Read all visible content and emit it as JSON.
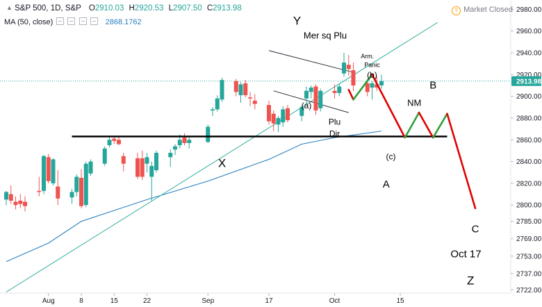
{
  "header": {
    "symbol": "S&P 500, 1D, S&P",
    "open_label": "O",
    "open": "2910.03",
    "high_label": "H",
    "high": "2920.53",
    "low_label": "L",
    "low": "2907.50",
    "close_label": "C",
    "close": "2913.98",
    "ma_label": "MA (50, close)",
    "ma_value": "2868.1762",
    "market_status": "Market Closed",
    "status_icon": "question-circle-icon"
  },
  "colors": {
    "up": "#26a69a",
    "down": "#ef5350",
    "ma": "#2a7fbd",
    "trend": "#3db4a4",
    "wave_up": "#2e9e3b",
    "wave_down": "#e00000",
    "price_tag": "#26a69a"
  },
  "chart_data": {
    "type": "candlestick",
    "x_tick_labels": [
      {
        "label": "Aug",
        "date": "2018-08-01"
      },
      {
        "label": "8",
        "date": "2018-08-08"
      },
      {
        "label": "15",
        "date": "2018-08-15"
      },
      {
        "label": "22",
        "date": "2018-08-22"
      },
      {
        "label": "Sep",
        "date": "2018-09-04"
      },
      {
        "label": "17",
        "date": "2018-09-17"
      },
      {
        "label": "Oct",
        "date": "2018-10-01"
      },
      {
        "label": "15",
        "date": "2018-10-15"
      }
    ],
    "y_ticks": [
      2722.0,
      2737.0,
      2753.0,
      2769.0,
      2785.0,
      2800.0,
      2820.0,
      2840.0,
      2860.0,
      2880.0,
      2900.0,
      2920.0,
      2940.0,
      2960.0,
      2980.0
    ],
    "ylim": [
      2719,
      2986
    ],
    "last_price": "2913.98",
    "candles": [
      {
        "date": "2018-07-23",
        "o": 2805,
        "h": 2813,
        "l": 2800,
        "c": 2812
      },
      {
        "date": "2018-07-24",
        "o": 2810,
        "h": 2818,
        "l": 2801,
        "c": 2804
      },
      {
        "date": "2018-07-25",
        "o": 2803,
        "h": 2808,
        "l": 2796,
        "c": 2800
      },
      {
        "date": "2018-07-26",
        "o": 2804,
        "h": 2810,
        "l": 2797,
        "c": 2801
      },
      {
        "date": "2018-07-27",
        "o": 2803,
        "h": 2808,
        "l": 2794,
        "c": 2799
      },
      {
        "date": "2018-07-30",
        "o": 2813,
        "h": 2826,
        "l": 2808,
        "c": 2812
      },
      {
        "date": "2018-07-31",
        "o": 2813,
        "h": 2846,
        "l": 2810,
        "c": 2845
      },
      {
        "date": "2018-08-01",
        "o": 2844,
        "h": 2847,
        "l": 2820,
        "c": 2822
      },
      {
        "date": "2018-08-02",
        "o": 2820,
        "h": 2843,
        "l": 2818,
        "c": 2842
      },
      {
        "date": "2018-08-03",
        "o": 2817,
        "h": 2832,
        "l": 2800,
        "c": 2806
      },
      {
        "date": "2018-08-06",
        "o": 2807,
        "h": 2815,
        "l": 2801,
        "c": 2812
      },
      {
        "date": "2018-08-07",
        "o": 2812,
        "h": 2828,
        "l": 2808,
        "c": 2826
      },
      {
        "date": "2018-08-08",
        "o": 2825,
        "h": 2833,
        "l": 2797,
        "c": 2799
      },
      {
        "date": "2018-08-09",
        "o": 2800,
        "h": 2840,
        "l": 2798,
        "c": 2838
      },
      {
        "date": "2018-08-10",
        "o": 2829,
        "h": 2842,
        "l": 2827,
        "c": 2840
      },
      {
        "date": "2018-08-13",
        "o": 2838,
        "h": 2854,
        "l": 2836,
        "c": 2852
      },
      {
        "date": "2018-08-14",
        "o": 2855,
        "h": 2863,
        "l": 2853,
        "c": 2860
      },
      {
        "date": "2018-08-15",
        "o": 2861,
        "h": 2863,
        "l": 2856,
        "c": 2859
      },
      {
        "date": "2018-08-16",
        "o": 2860,
        "h": 2863,
        "l": 2855,
        "c": 2856
      },
      {
        "date": "2018-08-17",
        "o": 2845,
        "h": 2848,
        "l": 2831,
        "c": 2838
      },
      {
        "date": "2018-08-20",
        "o": 2843,
        "h": 2848,
        "l": 2824,
        "c": 2826
      },
      {
        "date": "2018-08-21",
        "o": 2843,
        "h": 2850,
        "l": 2823,
        "c": 2826
      },
      {
        "date": "2018-08-22",
        "o": 2838,
        "h": 2848,
        "l": 2830,
        "c": 2844
      },
      {
        "date": "2018-08-23",
        "o": 2826,
        "h": 2840,
        "l": 2804,
        "c": 2836
      },
      {
        "date": "2018-08-24",
        "o": 2832,
        "h": 2850,
        "l": 2830,
        "c": 2848
      },
      {
        "date": "2018-08-27",
        "o": 2844,
        "h": 2851,
        "l": 2835,
        "c": 2848
      },
      {
        "date": "2018-08-28",
        "o": 2851,
        "h": 2856,
        "l": 2846,
        "c": 2854
      },
      {
        "date": "2018-08-29",
        "o": 2855,
        "h": 2865,
        "l": 2852,
        "c": 2860
      },
      {
        "date": "2018-08-30",
        "o": 2862,
        "h": 2866,
        "l": 2855,
        "c": 2857
      },
      {
        "date": "2018-08-31",
        "o": 2857,
        "h": 2863,
        "l": 2852,
        "c": 2860
      },
      {
        "date": "2018-09-04",
        "o": 2858,
        "h": 2874,
        "l": 2857,
        "c": 2872
      },
      {
        "date": "2018-09-05",
        "o": 2887,
        "h": 2890,
        "l": 2882,
        "c": 2888
      },
      {
        "date": "2018-09-06",
        "o": 2888,
        "h": 2901,
        "l": 2886,
        "c": 2898
      },
      {
        "date": "2018-09-07",
        "o": 2897,
        "h": 2917,
        "l": 2895,
        "c": 2915
      },
      {
        "date": "2018-09-10",
        "o": 2914,
        "h": 2916,
        "l": 2900,
        "c": 2904
      },
      {
        "date": "2018-09-11",
        "o": 2901,
        "h": 2913,
        "l": 2894,
        "c": 2911
      },
      {
        "date": "2018-09-12",
        "o": 2912,
        "h": 2915,
        "l": 2899,
        "c": 2901
      },
      {
        "date": "2018-09-13",
        "o": 2899,
        "h": 2904,
        "l": 2891,
        "c": 2898
      },
      {
        "date": "2018-09-14",
        "o": 2896,
        "h": 2902,
        "l": 2888,
        "c": 2893
      },
      {
        "date": "2018-09-17",
        "o": 2892,
        "h": 2896,
        "l": 2874,
        "c": 2877
      },
      {
        "date": "2018-09-18",
        "o": 2884,
        "h": 2887,
        "l": 2868,
        "c": 2875
      },
      {
        "date": "2018-09-19",
        "o": 2874,
        "h": 2882,
        "l": 2867,
        "c": 2880
      },
      {
        "date": "2018-09-20",
        "o": 2876,
        "h": 2891,
        "l": 2872,
        "c": 2888
      },
      {
        "date": "2018-09-21",
        "o": 2889,
        "h": 2892,
        "l": 2876,
        "c": 2878
      },
      {
        "date": "2018-09-24",
        "o": 2882,
        "h": 2891,
        "l": 2877,
        "c": 2890
      },
      {
        "date": "2018-09-25",
        "o": 2898,
        "h": 2909,
        "l": 2893,
        "c": 2905
      },
      {
        "date": "2018-09-26",
        "o": 2904,
        "h": 2910,
        "l": 2898,
        "c": 2908
      },
      {
        "date": "2018-09-27",
        "o": 2909,
        "h": 2911,
        "l": 2883,
        "c": 2887
      },
      {
        "date": "2018-09-28",
        "o": 2889,
        "h": 2907,
        "l": 2886,
        "c": 2905
      },
      {
        "date": "2018-10-01",
        "o": 2905,
        "h": 2911,
        "l": 2898,
        "c": 2903
      },
      {
        "date": "2018-10-02",
        "o": 2903,
        "h": 2912,
        "l": 2900,
        "c": 2909
      },
      {
        "date": "2018-10-03",
        "o": 2921,
        "h": 2940,
        "l": 2918,
        "c": 2931
      },
      {
        "date": "2018-10-04",
        "o": 2929,
        "h": 2938,
        "l": 2919,
        "c": 2925
      },
      {
        "date": "2018-10-05",
        "o": 2924,
        "h": 2931,
        "l": 2905,
        "c": 2910
      },
      {
        "date": "2018-10-08",
        "o": 2912,
        "h": 2916,
        "l": 2900,
        "c": 2904
      },
      {
        "date": "2018-10-09",
        "o": 2908,
        "h": 2914,
        "l": 2897,
        "c": 2912
      },
      {
        "date": "2018-10-10",
        "o": 2911,
        "h": 2918,
        "l": 2905,
        "c": 2908
      },
      {
        "date": "2018-10-11",
        "o": 2910,
        "h": 2920,
        "l": 2907,
        "c": 2914
      }
    ],
    "ma50": [
      {
        "date": "2018-07-23",
        "v": 2748
      },
      {
        "date": "2018-08-01",
        "v": 2765
      },
      {
        "date": "2018-08-08",
        "v": 2785
      },
      {
        "date": "2018-08-15",
        "v": 2795
      },
      {
        "date": "2018-08-22",
        "v": 2805
      },
      {
        "date": "2018-09-04",
        "v": 2822
      },
      {
        "date": "2018-09-17",
        "v": 2842
      },
      {
        "date": "2018-09-24",
        "v": 2856
      },
      {
        "date": "2018-10-01",
        "v": 2862
      },
      {
        "date": "2018-10-11",
        "v": 2868
      }
    ],
    "annotations": {
      "support_line": {
        "from": "2018-08-06",
        "to": "2018-10-25",
        "price": 2863
      },
      "trend_channel": [
        {
          "from": "2018-07-23",
          "from_price": 2720,
          "to": "2018-10-23",
          "to_price": 2968
        }
      ],
      "wedge_top": {
        "from": "2018-09-17",
        "from_price": 2942,
        "to": "2018-10-05",
        "to_price": 2922
      },
      "wedge_bottom": {
        "from": "2018-09-18",
        "from_price": 2905,
        "to": "2018-10-04",
        "to_price": 2885
      },
      "wave_path": [
        {
          "date": "2018-10-04",
          "price": 2906,
          "dir": "down"
        },
        {
          "date": "2018-10-05",
          "price": 2897,
          "dir": "down"
        },
        {
          "date": "2018-10-09",
          "price": 2920,
          "dir": "up"
        },
        {
          "date": "2018-10-16",
          "price": 2862,
          "dir": "down"
        },
        {
          "date": "2018-10-19",
          "price": 2885,
          "dir": "up"
        },
        {
          "date": "2018-10-22",
          "price": 2862,
          "dir": "down"
        },
        {
          "date": "2018-10-25",
          "price": 2884,
          "dir": "up"
        },
        {
          "date": "2018-10-31",
          "price": 2797,
          "dir": "down"
        }
      ],
      "labels": [
        {
          "text": "Y",
          "date": "2018-09-23",
          "price": 2966,
          "size": 17
        },
        {
          "text": "Mer sq Plu",
          "date": "2018-09-29",
          "price": 2953,
          "size": 13
        },
        {
          "text": "Arm.",
          "date": "2018-10-08",
          "price": 2935,
          "size": 9
        },
        {
          "text": "Panic",
          "date": "2018-10-09",
          "price": 2927,
          "size": 9
        },
        {
          "text": "(b)",
          "date": "2018-10-09",
          "price": 2917,
          "size": 12
        },
        {
          "text": "B",
          "date": "2018-10-22",
          "price": 2907,
          "size": 15
        },
        {
          "text": "NM",
          "date": "2018-10-18",
          "price": 2891,
          "size": 13
        },
        {
          "text": "(a)",
          "date": "2018-09-25",
          "price": 2889,
          "size": 12
        },
        {
          "text": "Plu",
          "date": "2018-10-01",
          "price": 2874,
          "size": 12
        },
        {
          "text": "Dir",
          "date": "2018-10-01",
          "price": 2863,
          "size": 12
        },
        {
          "text": "(c)",
          "date": "2018-10-13",
          "price": 2842,
          "size": 12
        },
        {
          "text": "X",
          "date": "2018-09-07",
          "price": 2835,
          "size": 17
        },
        {
          "text": "A",
          "date": "2018-10-12",
          "price": 2816,
          "size": 15
        },
        {
          "text": "C",
          "date": "2018-10-31",
          "price": 2775,
          "size": 15
        },
        {
          "text": "Oct 17",
          "date": "2018-10-29",
          "price": 2752,
          "size": 15
        },
        {
          "text": "Z",
          "date": "2018-10-30",
          "price": 2727,
          "size": 17
        }
      ]
    }
  }
}
